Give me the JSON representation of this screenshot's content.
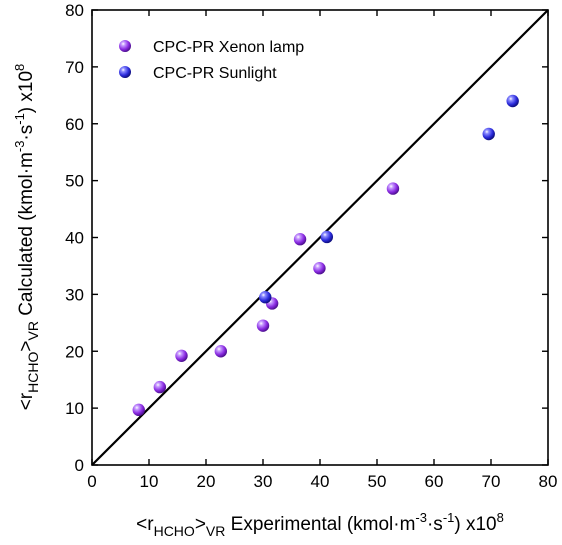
{
  "chart_data": {
    "type": "scatter",
    "xlim": [
      0,
      80
    ],
    "ylim": [
      0,
      80
    ],
    "x_ticks": [
      "0",
      "10",
      "20",
      "30",
      "40",
      "50",
      "60",
      "70",
      "80"
    ],
    "y_ticks": [
      "0",
      "10",
      "20",
      "30",
      "40",
      "50",
      "60",
      "70",
      "80"
    ],
    "xlabel": {
      "open": "<r",
      "sub1": "HCHO",
      "mid": ">",
      "sub2": "VR",
      "text": " Experimental (kmol·m",
      "sup1": "-3",
      "mid2": "·s",
      "sup2": "-1",
      "close": ") x10",
      "sup3": "8"
    },
    "ylabel": {
      "open": "<r",
      "sub1": "HCHO",
      "mid": ">",
      "sub2": "VR",
      "text": " Calculated (kmol·m",
      "sup1": "-3",
      "mid2": "·s",
      "sup2": "-1",
      "close": ") x10",
      "sup3": "8"
    },
    "reference_line": {
      "type": "y=x",
      "color": "#000000"
    },
    "legend_position": "top-left",
    "series": [
      {
        "name": "CPC-PR Xenon lamp",
        "color": "#8a2be2",
        "points": [
          [
            8.2,
            9.7
          ],
          [
            11.9,
            13.7
          ],
          [
            15.7,
            19.2
          ],
          [
            22.6,
            20.0
          ],
          [
            30.0,
            24.5
          ],
          [
            31.6,
            28.4
          ],
          [
            36.5,
            39.7
          ],
          [
            39.9,
            34.6
          ],
          [
            52.8,
            48.6
          ]
        ]
      },
      {
        "name": "CPC-PR Sunlight",
        "color": "#2b2bdc",
        "points": [
          [
            30.4,
            29.5
          ],
          [
            41.2,
            40.1
          ],
          [
            69.6,
            58.2
          ],
          [
            73.8,
            64.0
          ]
        ]
      }
    ]
  }
}
